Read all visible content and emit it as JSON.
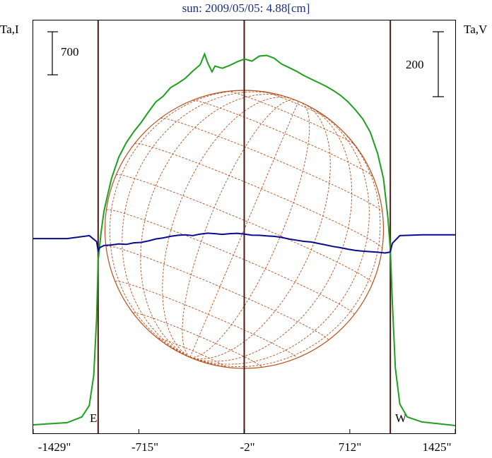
{
  "chart_data": {
    "type": "line",
    "title": "sun: 2009/05/05: 4.88[cm]",
    "left_axis_label": "Ta,I",
    "right_axis_label": "Ta,V",
    "left_scale_bar": "700",
    "right_scale_bar": "200",
    "x_ticks": [
      {
        "value": -1429,
        "label": "-1429\""
      },
      {
        "value": -715,
        "label": "-715\""
      },
      {
        "value": -2,
        "label": "-2\""
      },
      {
        "value": 712,
        "label": "712\""
      },
      {
        "value": 1425,
        "label": "1425\""
      }
    ],
    "xlim": [
      -1429,
      1425
    ],
    "limb_labels": {
      "east": "E",
      "west": "W"
    },
    "vertical_lines_arcsec": [
      -990,
      -2,
      986
    ],
    "colors": {
      "stokes_i": "#1ea01e",
      "stokes_v": "#0a0a8c",
      "grid": "#b5501e",
      "title": "#1a2f80",
      "vertical_lines": "#4a1a10"
    },
    "series": [
      {
        "ylim": [
          0,
          5500
        ],
        "x": [
          -1429,
          -1200,
          -1100,
          -1050,
          -1020,
          -1000,
          -990,
          -970,
          -950,
          -900,
          -850,
          -800,
          -750,
          -700,
          -650,
          -600,
          -550,
          -500,
          -450,
          -400,
          -350,
          -300,
          -270,
          -250,
          -220,
          -200,
          -150,
          -100,
          -50,
          0,
          50,
          100,
          150,
          200,
          250,
          300,
          350,
          400,
          450,
          500,
          550,
          600,
          650,
          700,
          750,
          800,
          850,
          900,
          940,
          970,
          986,
          1000,
          1020,
          1050,
          1100,
          1200,
          1425
        ],
        "values": [
          10,
          40,
          120,
          280,
          700,
          1500,
          2300,
          2700,
          3000,
          3450,
          3750,
          3950,
          4100,
          4230,
          4380,
          4520,
          4600,
          4720,
          4780,
          4850,
          4950,
          5040,
          5190,
          5070,
          4940,
          5020,
          4990,
          5030,
          5080,
          5120,
          5090,
          5160,
          5170,
          5130,
          5050,
          5000,
          4950,
          4890,
          4840,
          4790,
          4740,
          4680,
          4610,
          4520,
          4410,
          4280,
          4100,
          3800,
          3450,
          2900,
          2450,
          1700,
          800,
          300,
          120,
          50,
          0
        ]
      },
      {
        "ylim": [
          -1400,
          1400
        ],
        "x": [
          -1429,
          -1200,
          -1050,
          -1000,
          -990,
          -980,
          -950,
          -900,
          -850,
          -800,
          -750,
          -700,
          -650,
          -600,
          -550,
          -500,
          -450,
          -400,
          -350,
          -300,
          -250,
          -200,
          -150,
          -100,
          -50,
          0,
          50,
          100,
          150,
          200,
          250,
          300,
          350,
          400,
          450,
          500,
          550,
          600,
          650,
          700,
          750,
          800,
          850,
          900,
          950,
          980,
          986,
          1000,
          1050,
          1200,
          1425
        ],
        "values": [
          -10,
          -10,
          10,
          -30,
          -90,
          -70,
          -55,
          -52,
          -45,
          -48,
          -38,
          -35,
          -25,
          -12,
          -5,
          5,
          12,
          15,
          10,
          20,
          26,
          23,
          18,
          23,
          25,
          20,
          13,
          12,
          8,
          5,
          -2,
          -12,
          -20,
          -28,
          -32,
          -42,
          -52,
          -62,
          -70,
          -80,
          -88,
          -93,
          -96,
          -100,
          -105,
          -100,
          -95,
          -40,
          10,
          15,
          15
        ]
      }
    ]
  }
}
